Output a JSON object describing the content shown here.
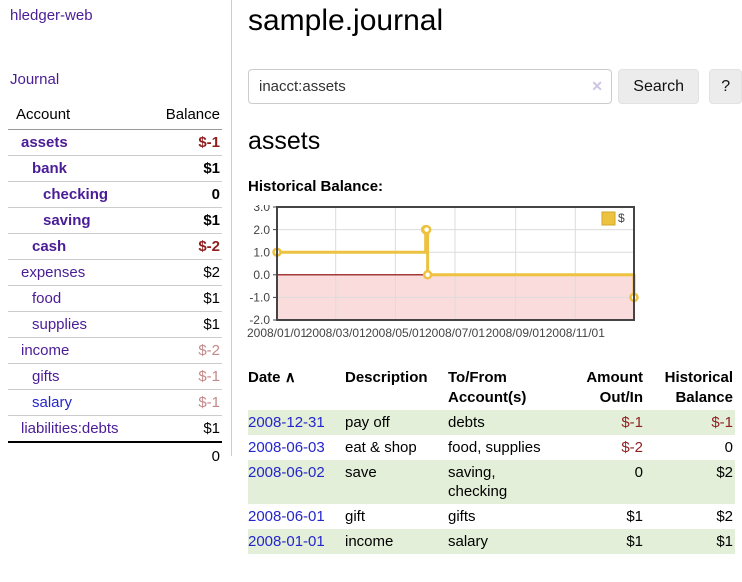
{
  "app": {
    "brand": "hledger-web"
  },
  "sidebar": {
    "nav_journal": "Journal",
    "accounts_table": {
      "headers": {
        "account": "Account",
        "balance": "Balance"
      },
      "rows": [
        {
          "name": "assets",
          "balance": "$-1",
          "depth": 0,
          "bold": true,
          "neg": true
        },
        {
          "name": "bank",
          "balance": "$1",
          "depth": 1,
          "bold": true,
          "neg": false
        },
        {
          "name": "checking",
          "balance": "0",
          "depth": 2,
          "bold": true,
          "neg": false
        },
        {
          "name": "saving",
          "balance": "$1",
          "depth": 2,
          "bold": true,
          "neg": false
        },
        {
          "name": "cash",
          "balance": "$-2",
          "depth": 1,
          "bold": true,
          "neg": true
        },
        {
          "name": "expenses",
          "balance": "$2",
          "depth": 0,
          "bold": false,
          "neg": false
        },
        {
          "name": "food",
          "balance": "$1",
          "depth": 1,
          "bold": false,
          "neg": false
        },
        {
          "name": "supplies",
          "balance": "$1",
          "depth": 1,
          "bold": false,
          "neg": false
        },
        {
          "name": "income",
          "balance": "$-2",
          "depth": 0,
          "bold": false,
          "neg": true
        },
        {
          "name": "gifts",
          "balance": "$-1",
          "depth": 1,
          "bold": false,
          "neg": true
        },
        {
          "name": "salary",
          "balance": "$-1",
          "depth": 1,
          "bold": false,
          "neg": true,
          "blue": true
        },
        {
          "name": "liabilities:debts",
          "balance": "$1",
          "depth": 0,
          "bold": false,
          "neg": false
        }
      ],
      "total": "0"
    }
  },
  "header": {
    "title": "sample.journal"
  },
  "search": {
    "value": "inacct:assets",
    "clear_icon": "✕",
    "button_label": "Search",
    "help_label": "?"
  },
  "account_page": {
    "title": "assets",
    "chart_label": "Historical Balance:"
  },
  "chart_data": {
    "type": "line",
    "step": true,
    "series": [
      {
        "name": "$",
        "color": "#edc240",
        "points": [
          [
            "2008-01-01",
            1
          ],
          [
            "2008-06-01",
            2
          ],
          [
            "2008-06-02",
            2
          ],
          [
            "2008-06-03",
            0
          ],
          [
            "2008-12-31",
            -1
          ]
        ]
      }
    ],
    "x_range": [
      "2008-01-01",
      "2008-12-31"
    ],
    "ylim": [
      -2,
      3
    ],
    "yticks": [
      "3.0",
      "2.0",
      "1.0",
      "0.0",
      "-1.0",
      "-2.0"
    ],
    "xticks": [
      {
        "label": "2008/01/01",
        "date": "2008-01-01"
      },
      {
        "label": "2008/03/01",
        "date": "2008-03-01"
      },
      {
        "label": "2008/05/01",
        "date": "2008-05-01"
      },
      {
        "label": "2008/07/01",
        "date": "2008-07-01"
      },
      {
        "label": "2008/09/01",
        "date": "2008-09-01"
      },
      {
        "label": "2008/11/01",
        "date": "2008-11-01"
      }
    ],
    "grid": true,
    "legend_position": "top-right",
    "colors": {
      "negative_region": "#fbdcdc",
      "zero_line": "#8b0000",
      "grid": "#dcdcdc",
      "border": "#444444",
      "tick_text": "#444444"
    }
  },
  "transactions": {
    "headers": {
      "date": "Date",
      "description": "Description",
      "accounts": "To/From Account(s)",
      "amount": "Amount Out/In",
      "balance": "Historical Balance"
    },
    "sort_icon": "∧",
    "rows": [
      {
        "date": "2008-12-31",
        "description": "pay off",
        "accounts": "debts",
        "amount": "$-1",
        "balance": "$-1",
        "amount_neg": true,
        "balance_neg": true
      },
      {
        "date": "2008-06-03",
        "description": "eat & shop",
        "accounts": "food, supplies",
        "amount": "$-2",
        "balance": "0",
        "amount_neg": true,
        "balance_neg": false
      },
      {
        "date": "2008-06-02",
        "description": "save",
        "accounts": "saving, checking",
        "amount": "0",
        "balance": "$2",
        "amount_neg": false,
        "balance_neg": false,
        "wrap": true
      },
      {
        "date": "2008-06-01",
        "description": "gift",
        "accounts": "gifts",
        "amount": "$1",
        "balance": "$2",
        "amount_neg": false,
        "balance_neg": false
      },
      {
        "date": "2008-01-01",
        "description": "income",
        "accounts": "salary",
        "amount": "$1",
        "balance": "$1",
        "amount_neg": false,
        "balance_neg": false
      }
    ]
  }
}
